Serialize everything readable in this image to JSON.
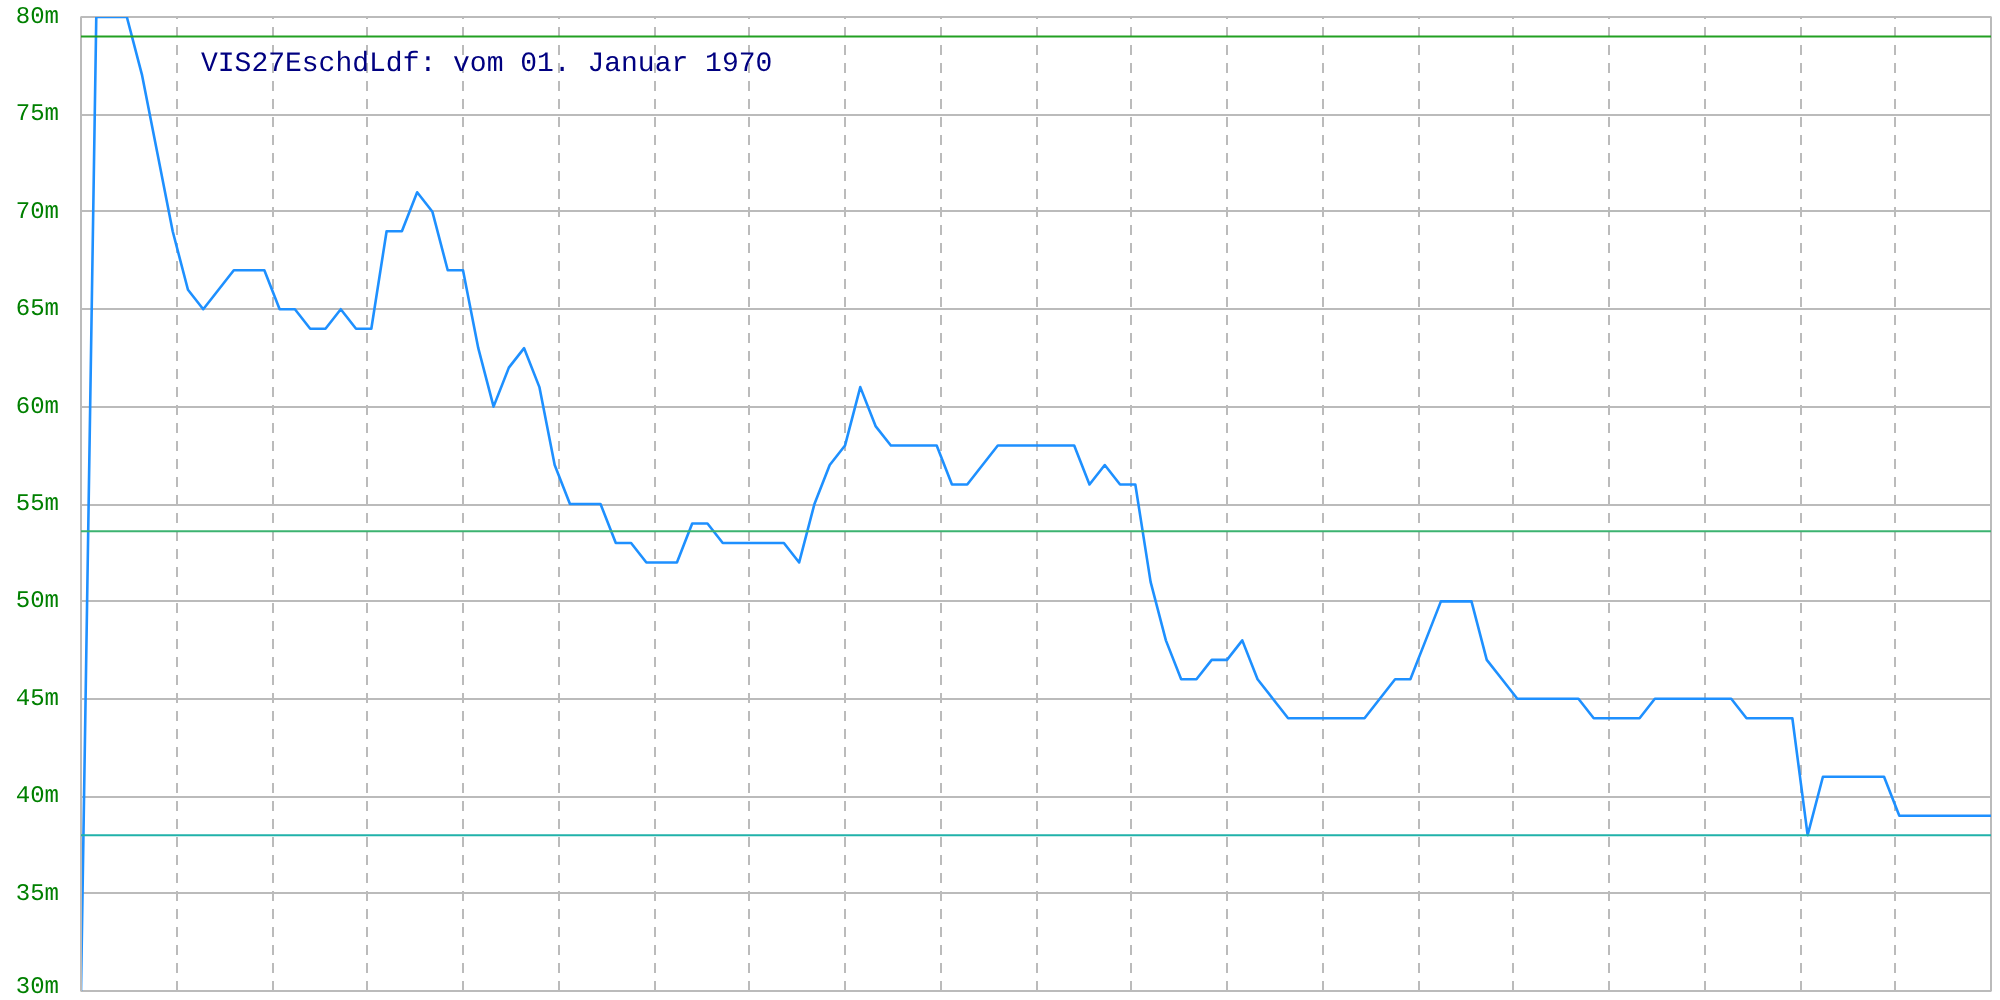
{
  "chart_data": {
    "type": "line",
    "title": "VIS27EschdLdf: vom 01. Januar 1970",
    "categories": [
      null,
      null,
      null,
      null,
      null,
      null,
      null,
      null,
      null,
      null,
      null,
      null,
      null,
      null,
      null,
      null,
      null,
      null,
      null,
      null,
      null,
      null,
      null,
      null,
      null,
      null,
      null,
      null,
      null,
      null,
      null,
      null,
      null,
      null,
      null,
      null,
      null,
      null,
      null,
      null,
      null,
      null,
      null,
      null,
      null,
      null,
      null,
      null,
      null,
      null,
      null,
      null,
      null,
      null,
      null,
      null,
      null,
      null,
      null,
      null,
      null,
      null,
      null,
      null,
      null,
      null,
      null,
      null,
      null,
      null,
      null,
      null,
      null,
      null,
      null,
      null,
      null,
      null,
      null,
      null,
      null,
      null,
      null,
      null,
      null,
      null,
      null,
      null,
      null,
      null,
      null,
      null,
      null,
      null,
      null,
      null,
      null,
      null,
      null,
      null,
      null,
      null,
      null,
      null,
      null,
      null,
      null,
      null,
      null,
      null,
      null,
      null,
      null,
      null,
      null,
      null,
      null,
      null,
      null,
      null,
      null,
      null,
      null,
      null,
      null,
      null
    ],
    "series": [
      {
        "color": "#1e90ff",
        "values": [
          30,
          80,
          80,
          80,
          77,
          73,
          69,
          66,
          65,
          66,
          67,
          67,
          67,
          65,
          65,
          64,
          64,
          65,
          64,
          64,
          69,
          69,
          71,
          70,
          67,
          67,
          63,
          60,
          62,
          63,
          61,
          57,
          55,
          55,
          55,
          53,
          53,
          52,
          52,
          52,
          54,
          54,
          53,
          53,
          53,
          53,
          53,
          52,
          55,
          57,
          58,
          61,
          59,
          58,
          58,
          58,
          58,
          56,
          56,
          57,
          58,
          58,
          58,
          58,
          58,
          58,
          56,
          57,
          56,
          56,
          51,
          48,
          46,
          46,
          47,
          47,
          48,
          46,
          45,
          44,
          44,
          44,
          44,
          44,
          44,
          45,
          46,
          46,
          48,
          50,
          50,
          50,
          47,
          46,
          45,
          45,
          45,
          45,
          45,
          44,
          44,
          44,
          44,
          45,
          45,
          45,
          45,
          45,
          45,
          44,
          44,
          44,
          44,
          38,
          41,
          41,
          41,
          41,
          41,
          39,
          39,
          39,
          39,
          39,
          39,
          39
        ]
      }
    ],
    "ylim": [
      30,
      80
    ],
    "yticks": [
      {
        "value": 30,
        "label": "30m"
      },
      {
        "value": 35,
        "label": "35m"
      },
      {
        "value": 40,
        "label": "40m"
      },
      {
        "value": 45,
        "label": "45m"
      },
      {
        "value": 50,
        "label": "50m"
      },
      {
        "value": 55,
        "label": "55m"
      },
      {
        "value": 60,
        "label": "60m"
      },
      {
        "value": 65,
        "label": "65m"
      },
      {
        "value": 70,
        "label": "70m"
      },
      {
        "value": 75,
        "label": "75m"
      },
      {
        "value": 80,
        "label": "80m"
      }
    ],
    "ref_lines": [
      {
        "axis": "y",
        "value": 79,
        "color": "#22a022"
      },
      {
        "axis": "y",
        "value": 53.6,
        "color": "#3cb371"
      },
      {
        "axis": "y",
        "value": 38,
        "color": "#20b2aa"
      }
    ],
    "grid": true,
    "marker": "none",
    "line_style": "solid"
  }
}
